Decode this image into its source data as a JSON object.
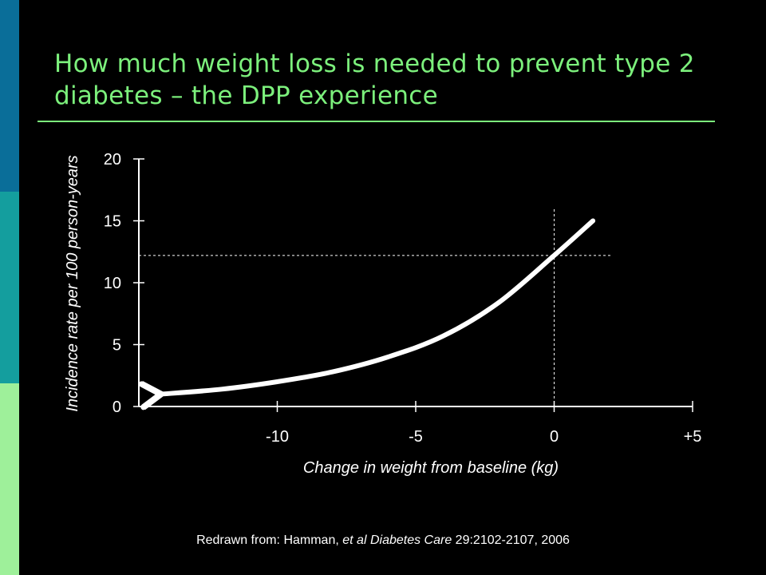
{
  "slide": {
    "title": "How much weight loss is needed to prevent type 2 diabetes – the DPP experience",
    "citation_prefix": "Redrawn from: Hamman, ",
    "citation_italic_1": "et al",
    "citation_journal": "Diabetes Care",
    "citation_suffix": " 29:2102-2107, 2006"
  },
  "colors": {
    "background": "#000000",
    "title": "#7cf07c",
    "rule": "#7cf07c",
    "axis": "#ffffff",
    "curve": "#ffffff",
    "accent_bars": [
      "#0a6e99",
      "#149e9e",
      "#9ef09a"
    ]
  },
  "chart_data": {
    "type": "line",
    "xlabel": "Change in weight from baseline (kg)",
    "ylabel": "Incidence rate per 100 person-years",
    "xlim": [
      -15,
      5
    ],
    "ylim": [
      0,
      20
    ],
    "x_ticks": [
      {
        "value": -10,
        "label": "-10"
      },
      {
        "value": -5,
        "label": "-5"
      },
      {
        "value": 0,
        "label": "0"
      },
      {
        "value": 5,
        "label": "+5"
      }
    ],
    "y_ticks": [
      {
        "value": 0,
        "label": "0"
      },
      {
        "value": 5,
        "label": "5"
      },
      {
        "value": 10,
        "label": "10"
      },
      {
        "value": 15,
        "label": "15"
      },
      {
        "value": 20,
        "label": "20"
      }
    ],
    "grid": false,
    "arrow": "left end of curve",
    "reference_lines": [
      {
        "orientation": "vertical",
        "x": 0,
        "style": "dashed"
      },
      {
        "orientation": "horizontal",
        "y": 12.2,
        "style": "dashed"
      }
    ],
    "series": [
      {
        "x": [
          -14.2,
          -12,
          -10,
          -8,
          -6,
          -4,
          -2,
          0,
          1.4
        ],
        "y": [
          1.0,
          1.4,
          2.0,
          2.8,
          4.0,
          5.7,
          8.4,
          12.2,
          15.0
        ]
      }
    ]
  }
}
